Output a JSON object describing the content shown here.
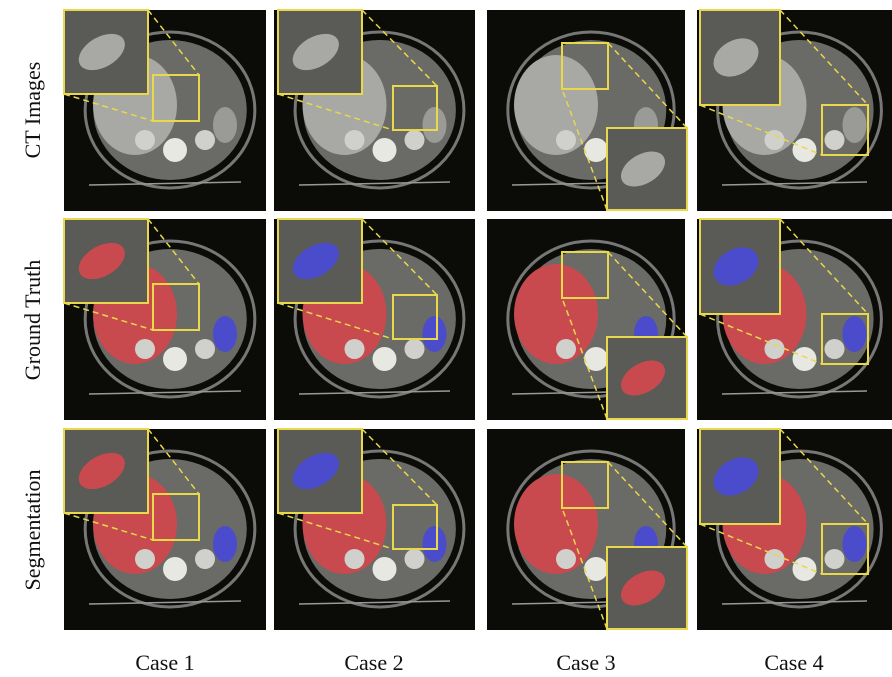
{
  "row_labels": [
    "CT Images",
    "Ground Truth",
    "Segmentation"
  ],
  "column_labels": [
    "Case 1",
    "Case 2",
    "Case 3",
    "Case 4"
  ]
}
